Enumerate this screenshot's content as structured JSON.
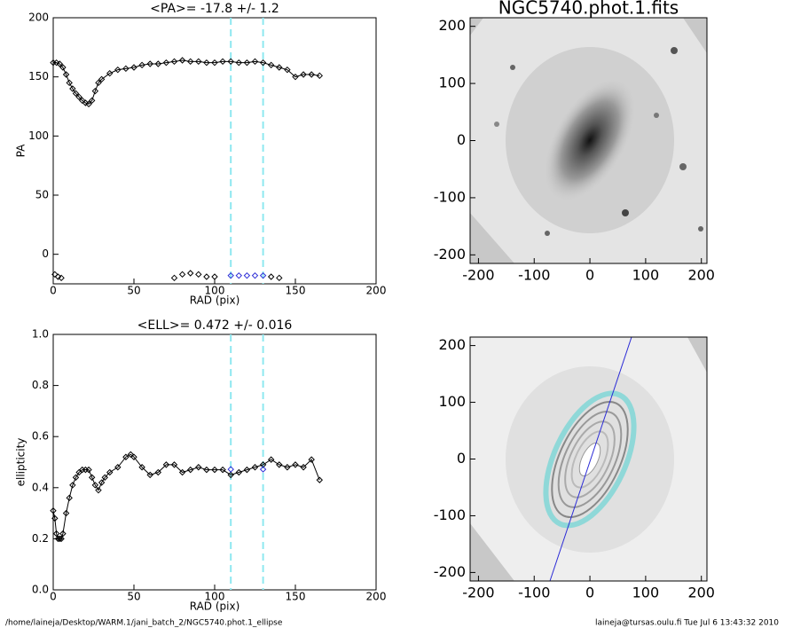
{
  "chart_data": [
    {
      "type": "scatter",
      "title": "<PA>= -17.8 +/-   1.2",
      "xlabel": "RAD (pix)",
      "ylabel": "PA",
      "xlim": [
        0,
        200
      ],
      "xticks": [
        0,
        50,
        100,
        150,
        200
      ],
      "ylim": [
        -25,
        200
      ],
      "yticks": [
        0,
        50,
        100,
        150,
        200
      ],
      "vlines": [
        110,
        130
      ],
      "vline_color": "#8ee8f0",
      "series": [
        {
          "color": "#000000",
          "x": [
            0,
            2,
            4,
            6,
            8,
            10,
            12,
            14,
            16,
            18,
            20,
            22,
            24,
            26,
            28,
            30,
            35,
            40,
            45,
            50,
            55,
            60,
            65,
            70,
            75,
            80,
            85,
            90,
            95,
            100,
            105,
            110,
            115,
            120,
            125,
            130,
            135,
            140,
            145,
            150,
            155,
            160,
            165
          ],
          "values": [
            162,
            162,
            161,
            158,
            152,
            145,
            140,
            136,
            133,
            130,
            128,
            127,
            130,
            138,
            145,
            148,
            153,
            156,
            157,
            158,
            160,
            161,
            161,
            162,
            163,
            164,
            163,
            163,
            162,
            162,
            163,
            163,
            162,
            162,
            163,
            162,
            160,
            158,
            156,
            150,
            152,
            152,
            151
          ]
        },
        {
          "color": "#000000",
          "x": [
            1,
            3,
            5,
            75,
            80,
            85,
            90,
            95,
            100,
            135,
            140
          ],
          "values": [
            -17,
            -19,
            -20,
            -20,
            -17,
            -16,
            -17,
            -19,
            -19,
            -19,
            -20
          ]
        },
        {
          "color": "#2b2bd6",
          "x": [
            110,
            115,
            120,
            125,
            130
          ],
          "values": [
            -18,
            -18,
            -18,
            -18,
            -18
          ]
        }
      ]
    },
    {
      "type": "image",
      "title": "NGC5740.phot.1.fits",
      "xlim": [
        -215,
        210
      ],
      "xticks": [
        -200,
        -100,
        0,
        100,
        200
      ],
      "ylim": [
        -215,
        215
      ],
      "yticks": [
        -200,
        -100,
        0,
        100,
        200
      ]
    },
    {
      "type": "scatter",
      "title": "<ELL>= 0.472 +/-  0.016",
      "xlabel": "RAD (pix)",
      "ylabel": "ellipticity",
      "xlim": [
        0,
        200
      ],
      "xticks": [
        0,
        50,
        100,
        150,
        200
      ],
      "ylim": [
        0,
        1
      ],
      "yticks": [
        {
          "value": 0,
          "label": "0.0"
        },
        0.2,
        0.4,
        0.6,
        0.8,
        {
          "value": 1,
          "label": "1.0"
        }
      ],
      "vlines": [
        110,
        130
      ],
      "vline_color": "#8ee8f0",
      "series": [
        {
          "color": "#000000",
          "x": [
            0,
            1,
            2,
            3,
            4,
            5,
            6,
            8,
            10,
            12,
            14,
            16,
            18,
            20,
            22,
            24,
            26,
            28,
            30,
            32,
            35,
            40,
            45,
            48,
            50,
            55,
            60,
            65,
            70,
            75,
            80,
            85,
            90,
            95,
            100,
            105,
            110,
            115,
            120,
            125,
            130,
            135,
            140,
            145,
            150,
            155,
            160,
            165
          ],
          "values": [
            0.31,
            0.28,
            0.22,
            0.2,
            0.2,
            0.2,
            0.22,
            0.3,
            0.36,
            0.41,
            0.44,
            0.46,
            0.47,
            0.47,
            0.47,
            0.44,
            0.41,
            0.39,
            0.42,
            0.44,
            0.46,
            0.48,
            0.52,
            0.53,
            0.52,
            0.48,
            0.45,
            0.46,
            0.49,
            0.49,
            0.46,
            0.47,
            0.48,
            0.47,
            0.47,
            0.47,
            0.45,
            0.46,
            0.47,
            0.48,
            0.49,
            0.51,
            0.49,
            0.48,
            0.49,
            0.48,
            0.51,
            0.43
          ]
        },
        {
          "color": "#2b2bd6",
          "x": [
            110,
            130
          ],
          "values": [
            0.472,
            0.472
          ]
        }
      ]
    },
    {
      "type": "image",
      "xlim": [
        -215,
        210
      ],
      "xticks": [
        -200,
        -100,
        0,
        100,
        200
      ],
      "ylim": [
        -215,
        215
      ],
      "yticks": [
        -200,
        -100,
        0,
        100,
        200
      ]
    }
  ],
  "footer": {
    "left": "/home/laineja/Desktop/WARM.1/jani_batch_2/NGC5740.phot.1_ellipse",
    "right": "laineja@tursas.oulu.fi  Tue Jul  6 13:43:32 2010"
  }
}
